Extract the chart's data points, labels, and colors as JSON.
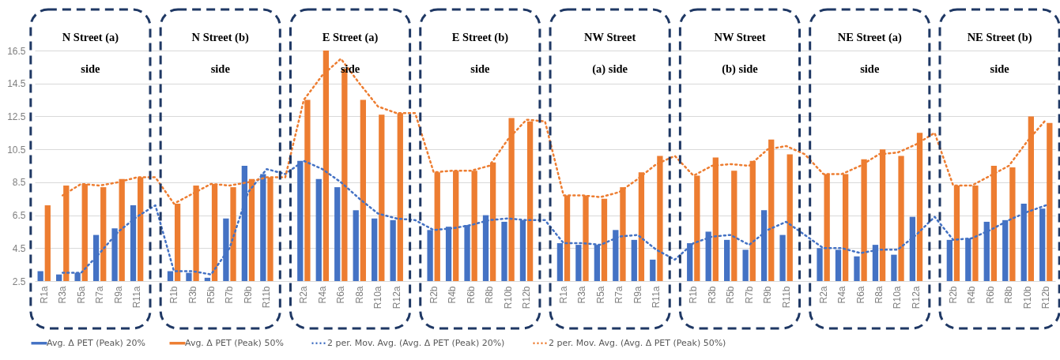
{
  "chart_data": {
    "type": "bar",
    "categories": [
      "R1a",
      "R3a",
      "R5a",
      "R7a",
      "R9a",
      "R11a",
      null,
      "R1b",
      "R3b",
      "R5b",
      "R7b",
      "R9b",
      "R11b",
      null,
      "R2a",
      "R4a",
      "R6a",
      "R8a",
      "R10a",
      "R12a",
      null,
      "R2b",
      "R4b",
      "R6b",
      "R8b",
      "R10b",
      "R12b",
      null,
      "R1a",
      "R3a",
      "R5a",
      "R7a",
      "R9a",
      "R11a",
      null,
      "R1b",
      "R3b",
      "R5b",
      "R7b",
      "R9b",
      "R11b",
      null,
      "R2a",
      "R4a",
      "R6a",
      "R8a",
      "R10a",
      "R12a",
      null,
      "R2b",
      "R4b",
      "R6b",
      "R8b",
      "R10b",
      "R12b"
    ],
    "series": [
      {
        "name": "Avg. Δ PET (Peak) 20%",
        "color": "#4472c4",
        "values": [
          3.1,
          2.9,
          3.0,
          5.3,
          5.7,
          7.1,
          null,
          3.1,
          3.0,
          2.7,
          6.3,
          9.5,
          9.0,
          null,
          9.8,
          8.7,
          8.2,
          6.8,
          6.3,
          6.2,
          null,
          5.6,
          5.8,
          5.9,
          6.5,
          6.1,
          6.2,
          null,
          4.8,
          4.7,
          4.7,
          5.6,
          5.0,
          3.8,
          null,
          4.8,
          5.5,
          5.0,
          4.4,
          6.8,
          5.3,
          null,
          4.5,
          4.4,
          4.0,
          4.7,
          4.1,
          6.4,
          null,
          5.0,
          5.1,
          6.1,
          6.2,
          7.2,
          6.9
        ]
      },
      {
        "name": "Avg. Δ PET (Peak) 50%",
        "color": "#ed7d31",
        "values": [
          7.1,
          8.3,
          8.4,
          8.2,
          8.7,
          8.8,
          null,
          7.2,
          8.3,
          8.4,
          8.2,
          8.7,
          8.8,
          null,
          13.5,
          16.5,
          15.4,
          13.5,
          12.6,
          12.7,
          null,
          9.1,
          9.2,
          9.2,
          9.7,
          12.4,
          12.2,
          null,
          7.7,
          7.7,
          7.5,
          8.2,
          9.1,
          10.1,
          null,
          8.9,
          10.0,
          9.2,
          9.8,
          11.1,
          10.2,
          null,
          9.0,
          9.0,
          9.9,
          10.5,
          10.1,
          11.5,
          null,
          8.3,
          8.3,
          9.5,
          9.4,
          12.5,
          12.1
        ]
      },
      {
        "name": "2 per. Mov. Avg. (Avg. Δ PET (Peak) 20%)",
        "color": "#4472c4",
        "type": "line",
        "line_style": "dotted",
        "values": [
          null,
          3.0,
          3.0,
          4.2,
          5.5,
          6.4,
          7.1,
          3.1,
          3.1,
          2.9,
          4.5,
          7.9,
          9.3,
          9.0,
          9.8,
          9.3,
          8.5,
          7.5,
          6.6,
          6.3,
          6.2,
          5.6,
          5.7,
          5.9,
          6.2,
          6.3,
          6.2,
          6.2,
          4.8,
          4.8,
          4.7,
          5.2,
          5.3,
          4.4,
          3.8,
          4.8,
          5.2,
          5.3,
          4.7,
          5.6,
          6.1,
          5.3,
          4.5,
          4.5,
          4.2,
          4.4,
          4.4,
          5.3,
          6.4,
          5.0,
          5.1,
          5.6,
          6.2,
          6.7,
          7.1
        ]
      },
      {
        "name": "2 per. Mov. Avg. (Avg. Δ PET (Peak) 50%)",
        "color": "#ed7d31",
        "type": "line",
        "line_style": "dotted",
        "values": [
          null,
          7.7,
          8.4,
          8.3,
          8.5,
          8.8,
          8.8,
          7.2,
          7.8,
          8.4,
          8.3,
          8.5,
          8.8,
          8.8,
          13.5,
          15.0,
          16.0,
          14.5,
          13.1,
          12.7,
          12.7,
          9.1,
          9.2,
          9.2,
          9.5,
          11.1,
          12.3,
          12.2,
          7.7,
          7.7,
          7.6,
          7.9,
          8.7,
          9.6,
          10.1,
          8.9,
          9.5,
          9.6,
          9.5,
          10.5,
          10.7,
          10.2,
          9.0,
          9.0,
          9.5,
          10.2,
          10.3,
          10.8,
          11.5,
          8.3,
          8.3,
          8.9,
          9.5,
          11.0,
          12.3
        ]
      }
    ],
    "ylim": [
      2.5,
      16.5
    ],
    "yticks": [
      2.5,
      4.5,
      6.5,
      8.5,
      10.5,
      12.5,
      14.5,
      16.5
    ],
    "grid": "y",
    "legend": "bottom",
    "annotations": [
      "N Street (a)\nside",
      "N Street (b)\nside",
      "E Street (a)\nside",
      "E Street (b)\nside",
      "NW Street\n(a) side",
      "NW Street\n(b) side",
      "NE Street (a)\nside",
      "NE Street (b)\nside"
    ]
  }
}
